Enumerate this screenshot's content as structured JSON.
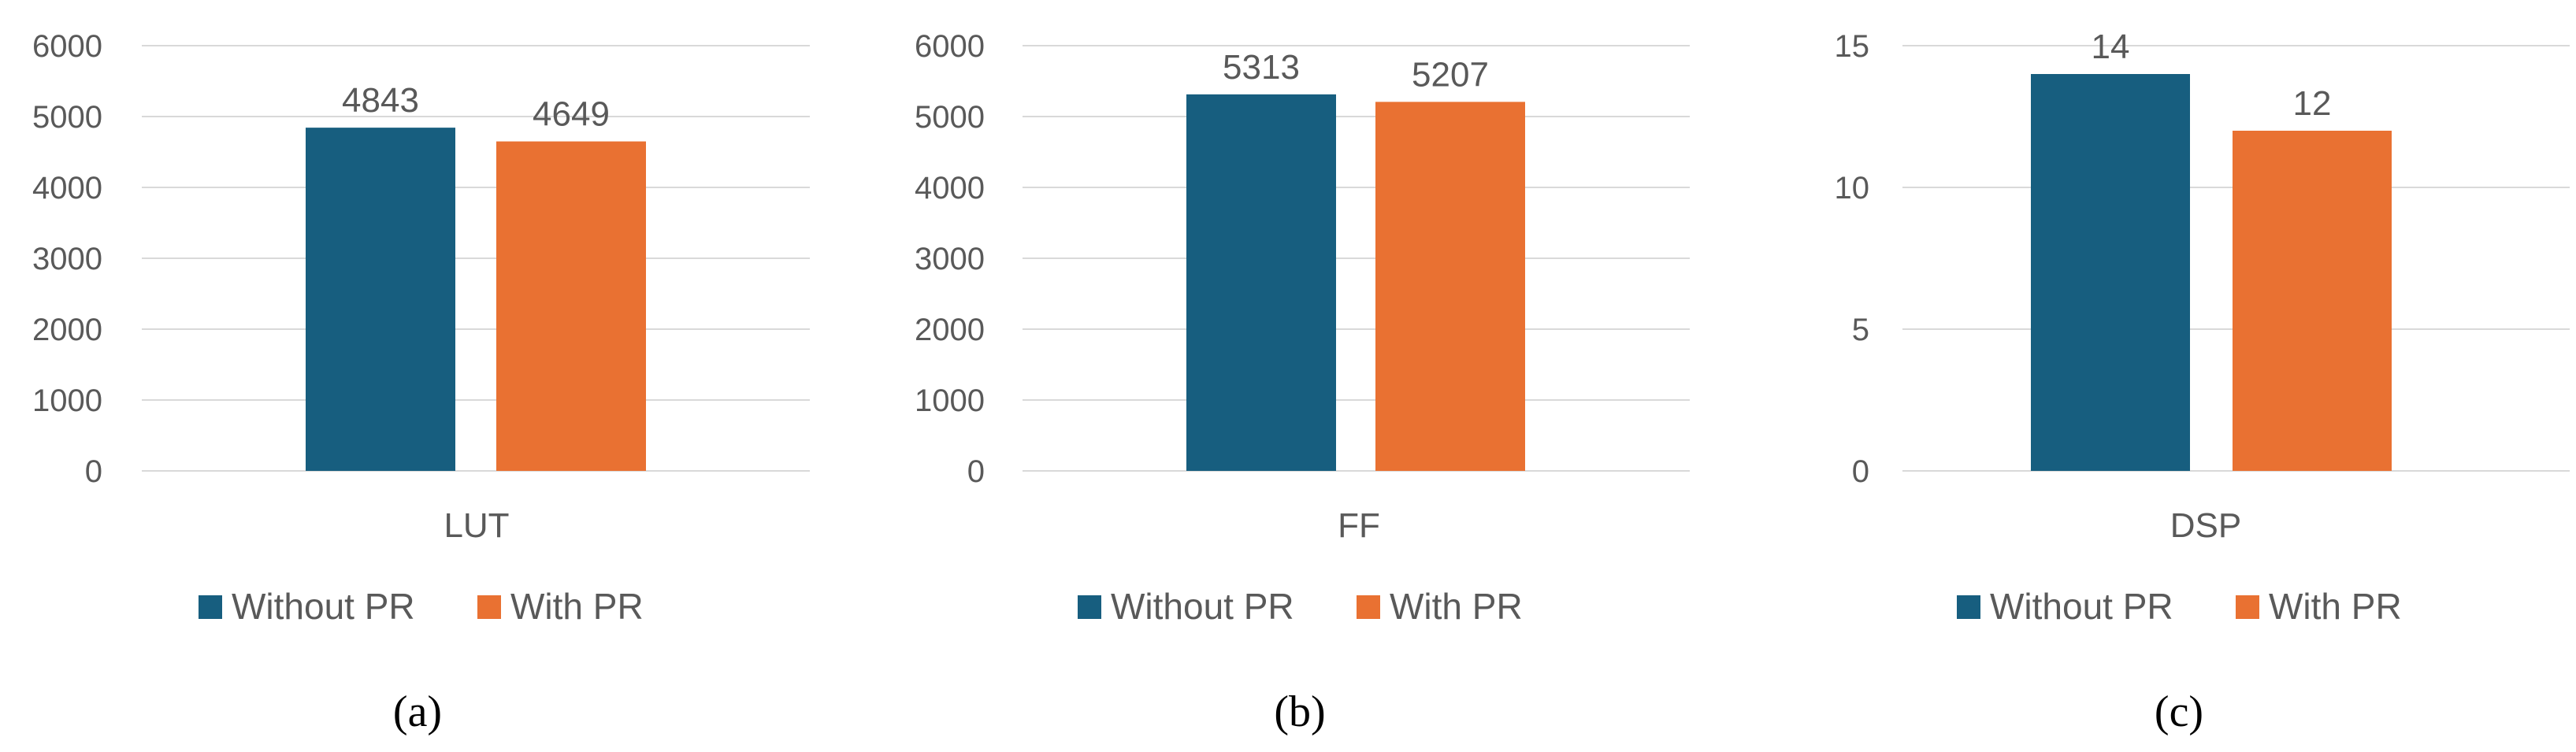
{
  "colors": {
    "without_pr": "#175e7f",
    "with_pr": "#e97132",
    "gridline": "#d9d9d9",
    "text": "#595959"
  },
  "legend": [
    "Without PR",
    "With PR"
  ],
  "chart_data": [
    {
      "type": "bar",
      "caption": "(a)",
      "categories": [
        "LUT"
      ],
      "series": [
        {
          "name": "Without PR",
          "values": [
            4843
          ]
        },
        {
          "name": "With PR",
          "values": [
            4649
          ]
        }
      ],
      "ylim": [
        0,
        6000
      ],
      "yticks": [
        0,
        1000,
        2000,
        3000,
        4000,
        5000,
        6000
      ],
      "grid": true,
      "legend_position": "bottom"
    },
    {
      "type": "bar",
      "caption": "(b)",
      "categories": [
        "FF"
      ],
      "series": [
        {
          "name": "Without PR",
          "values": [
            5313
          ]
        },
        {
          "name": "With PR",
          "values": [
            5207
          ]
        }
      ],
      "ylim": [
        0,
        6000
      ],
      "yticks": [
        0,
        1000,
        2000,
        3000,
        4000,
        5000,
        6000
      ],
      "grid": true,
      "legend_position": "bottom"
    },
    {
      "type": "bar",
      "caption": "(c)",
      "categories": [
        "DSP"
      ],
      "series": [
        {
          "name": "Without PR",
          "values": [
            14
          ]
        },
        {
          "name": "With PR",
          "values": [
            12
          ]
        }
      ],
      "ylim": [
        0,
        15
      ],
      "yticks": [
        0,
        5,
        10,
        15
      ],
      "grid": true,
      "legend_position": "bottom"
    }
  ]
}
